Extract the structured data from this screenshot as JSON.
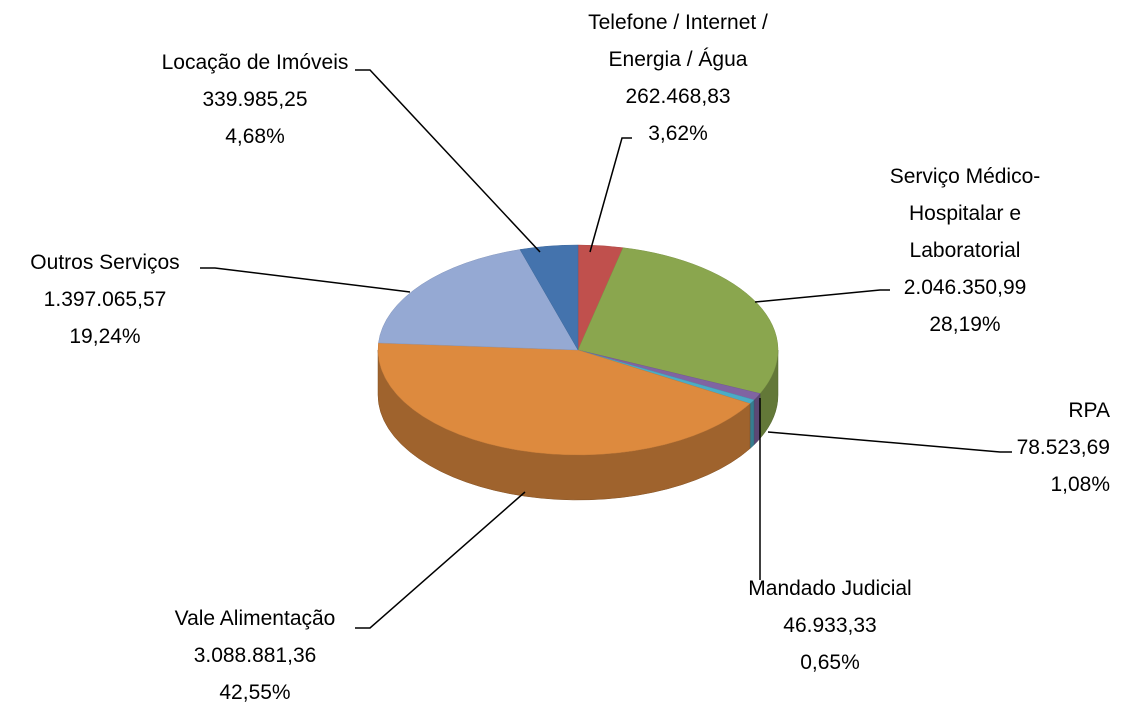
{
  "chart_data": {
    "type": "pie",
    "categories": [
      "Telefone / Internet /\nEnergia / Água",
      "Serviço Médico-\nHospitalar  e\nLaboratorial",
      "RPA",
      "Mandado Judicial",
      "Vale Alimentação",
      "Outros Serviços",
      "Locação de Imóveis"
    ],
    "values": [
      262468.83,
      2046350.99,
      78523.69,
      46933.33,
      3088881.36,
      1397065.57,
      339985.25
    ],
    "value_labels": [
      "262.468,83",
      "2.046.350,99",
      "78.523,69",
      "46.933,33",
      "3.088.881,36",
      "1.397.065,57",
      "339.985,25"
    ],
    "percents": [
      3.62,
      28.19,
      1.08,
      0.65,
      42.55,
      19.24,
      4.68
    ],
    "percent_labels": [
      "3,62%",
      "28,19%",
      "1,08%",
      "0,65%",
      "42,55%",
      "19,24%",
      "4,68%"
    ],
    "colors": [
      "#c0504d",
      "#8aa64e",
      "#8064a2",
      "#4bacc6",
      "#dd8a3e",
      "#95a9d3",
      "#4473ad"
    ]
  }
}
